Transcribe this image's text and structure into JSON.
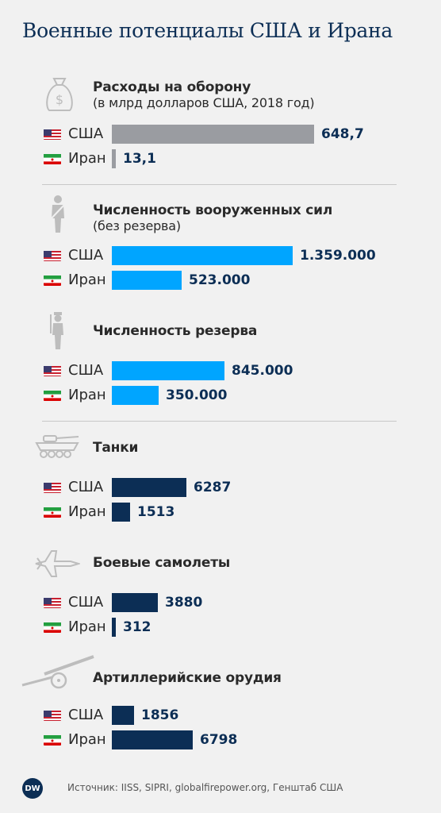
{
  "title": "Военные потенциалы США и Ирана",
  "source": "Источник: IISS, SIPRI, globalfirepower.org, Генштаб США",
  "logo_text": "DW",
  "colors": {
    "gray_bar": "#9a9ca1",
    "light_blue_bar": "#00a5ff",
    "navy_bar": "#0c2e55",
    "value_text": "#0c2e55"
  },
  "chart_data": [
    {
      "type": "bar",
      "title": "Расходы на оборону",
      "subtitle": "(в млрд долларов США, 2018 год)",
      "icon": "money-bag-icon",
      "bar_color": "#9a9ca1",
      "categories": [
        "США",
        "Иран"
      ],
      "values": [
        648.7,
        13.1
      ],
      "labels": [
        "648,7",
        "13,1"
      ]
    },
    {
      "type": "bar",
      "title": "Численность вооруженных сил",
      "subtitle": "(без резерва)",
      "icon": "soldier-icon",
      "bar_color": "#00a5ff",
      "categories": [
        "США",
        "Иран"
      ],
      "values": [
        1359000,
        523000
      ],
      "labels": [
        "1.359.000",
        "523.000"
      ]
    },
    {
      "type": "bar",
      "title": "Численность резерва",
      "subtitle": "",
      "icon": "soldier-reserve-icon",
      "bar_color": "#00a5ff",
      "categories": [
        "США",
        "Иран"
      ],
      "values": [
        845000,
        350000
      ],
      "labels": [
        "845.000",
        "350.000"
      ]
    },
    {
      "type": "bar",
      "title": "Танки",
      "subtitle": "",
      "icon": "tank-icon",
      "bar_color": "#0c2e55",
      "categories": [
        "США",
        "Иран"
      ],
      "values": [
        6287,
        1513
      ],
      "labels": [
        "6287",
        "1513"
      ]
    },
    {
      "type": "bar",
      "title": "Боевые самолеты",
      "subtitle": "",
      "icon": "fighter-jet-icon",
      "bar_color": "#0c2e55",
      "categories": [
        "США",
        "Иран"
      ],
      "values": [
        3880,
        312
      ],
      "labels": [
        "3880",
        "312"
      ]
    },
    {
      "type": "bar",
      "title": "Артиллерийские орудия",
      "subtitle": "",
      "icon": "artillery-icon",
      "bar_color": "#0c2e55",
      "categories": [
        "США",
        "Иран"
      ],
      "values": [
        1856,
        6798
      ],
      "labels": [
        "1856",
        "6798"
      ]
    }
  ]
}
